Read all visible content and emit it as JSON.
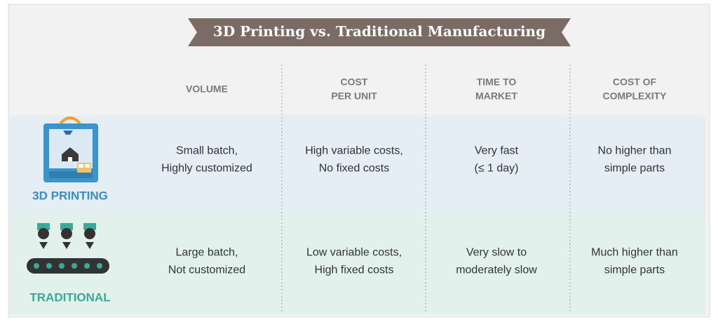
{
  "header": {
    "title": "3D Printing vs. Traditional Manufacturing"
  },
  "columns": [
    [
      "VOLUME"
    ],
    [
      "COST",
      "PER UNIT"
    ],
    [
      "TIME TO",
      "MARKET"
    ],
    [
      "COST OF",
      "COMPLEXITY"
    ]
  ],
  "rows": [
    {
      "label": "3D PRINTING",
      "cells": [
        [
          "Small batch,",
          "Highly customized"
        ],
        [
          "High variable costs,",
          "No fixed costs"
        ],
        [
          "Very fast",
          "(≤ 1 day)"
        ],
        [
          "No higher than",
          "simple parts"
        ]
      ]
    },
    {
      "label": "TRADITIONAL",
      "cells": [
        [
          "Large batch,",
          "Not customized"
        ],
        [
          "Low variable costs,",
          "High fixed costs"
        ],
        [
          "Very slow to",
          "moderately slow"
        ],
        [
          "Much higher than",
          "simple parts"
        ]
      ]
    }
  ]
}
